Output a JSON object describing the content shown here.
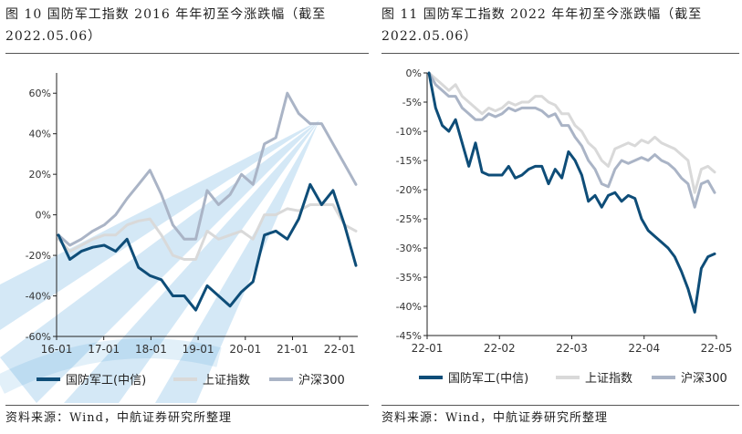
{
  "figures": {
    "left": {
      "caption": "图 10 国防军工指数 2016 年年初至今涨跌幅（截至 2022.05.06）",
      "source": "资料来源：Wind，中航证券研究所整理"
    },
    "right": {
      "caption": "图 11 国防军工指数 2022 年年初至今涨跌幅（截至 2022.05.06）",
      "source": "资料来源：Wind，中航证券研究所整理"
    }
  },
  "colors": {
    "defense": "#0e4d78",
    "sse": "#d9d9d9",
    "csi300": "#aab4c6",
    "watermark": "#3a98d6"
  },
  "chart_data": [
    {
      "type": "line",
      "x_ticks": [
        "16-01",
        "17-01",
        "18-01",
        "19-01",
        "20-01",
        "21-01",
        "22-01"
      ],
      "x": [
        "16-01",
        "16-04",
        "16-07",
        "16-10",
        "17-01",
        "17-04",
        "17-07",
        "17-10",
        "18-01",
        "18-04",
        "18-07",
        "18-10",
        "19-01",
        "19-04",
        "19-07",
        "19-10",
        "20-01",
        "20-04",
        "20-07",
        "20-10",
        "21-01",
        "21-04",
        "21-07",
        "21-10",
        "22-01",
        "22-03",
        "22-05"
      ],
      "ylim": [
        -60,
        70
      ],
      "y_ticks": [
        "60%",
        "40%",
        "20%",
        "0%",
        "-20%",
        "-40%",
        "-60%"
      ],
      "y_tick_values": [
        60,
        40,
        20,
        0,
        -20,
        -40,
        -60
      ],
      "series": [
        {
          "name": "国防军工(中信)",
          "values": [
            -10,
            -22,
            -18,
            -16,
            -15,
            -18,
            -12,
            -26,
            -30,
            -32,
            -40,
            -40,
            -47,
            -35,
            -40,
            -45,
            -38,
            -33,
            -10,
            -8,
            -12,
            -2,
            15,
            5,
            12,
            -5,
            -25
          ]
        },
        {
          "name": "上证指数",
          "values": [
            -12,
            -18,
            -15,
            -12,
            -10,
            -10,
            -5,
            -3,
            -2,
            -10,
            -20,
            -22,
            -22,
            -8,
            -12,
            -10,
            -8,
            -12,
            0,
            0,
            3,
            2,
            5,
            5,
            5,
            -5,
            -8
          ]
        },
        {
          "name": "沪深300",
          "values": [
            -10,
            -15,
            -12,
            -8,
            -5,
            0,
            8,
            15,
            22,
            10,
            -5,
            -12,
            -12,
            12,
            5,
            10,
            20,
            15,
            35,
            38,
            60,
            50,
            45,
            45,
            35,
            25,
            15
          ]
        }
      ],
      "legend": [
        "国防军工(中信)",
        "上证指数",
        "沪深300"
      ]
    },
    {
      "type": "line",
      "x_ticks": [
        "22-01",
        "22-02",
        "22-03",
        "22-04",
        "22-05"
      ],
      "x": [
        0,
        2,
        4,
        6,
        8,
        10,
        12,
        14,
        16,
        18,
        20,
        22,
        24,
        26,
        28,
        30,
        32,
        34,
        36,
        38,
        40,
        42,
        44,
        46,
        48,
        50,
        52,
        54,
        56,
        58,
        60,
        62,
        64,
        66,
        68,
        70,
        72,
        74,
        76,
        78,
        80,
        82,
        84,
        86
      ],
      "ylim": [
        -45,
        0
      ],
      "y_ticks": [
        "0%",
        "-5%",
        "-10%",
        "-15%",
        "-20%",
        "-25%",
        "-30%",
        "-35%",
        "-40%",
        "-45%"
      ],
      "y_tick_values": [
        0,
        -5,
        -10,
        -15,
        -20,
        -25,
        -30,
        -35,
        -40,
        -45
      ],
      "series": [
        {
          "name": "国防军工(中信)",
          "values": [
            0,
            -6,
            -9,
            -10,
            -8,
            -12,
            -16,
            -12,
            -17,
            -17.5,
            -17.5,
            -17.5,
            -16,
            -18,
            -17.5,
            -16.5,
            -16,
            -16,
            -19,
            -16.5,
            -18,
            -13.5,
            -15,
            -17.5,
            -22,
            -21,
            -23,
            -21,
            -20.5,
            -22,
            -21,
            -21.5,
            -25,
            -27,
            -28,
            -29,
            -30,
            -31.5,
            -34,
            -37,
            -41,
            -33.5,
            -31.5,
            -31
          ]
        },
        {
          "name": "上证指数",
          "values": [
            0,
            -1,
            -2,
            -3,
            -2,
            -4,
            -5,
            -6,
            -7,
            -6,
            -6.5,
            -6,
            -5,
            -5.5,
            -5,
            -5,
            -4,
            -4,
            -5,
            -5.5,
            -7,
            -7,
            -9,
            -10,
            -12,
            -13,
            -15,
            -16,
            -13,
            -12.5,
            -12,
            -12.5,
            -11.5,
            -12,
            -11,
            -12,
            -12.5,
            -13,
            -14,
            -15,
            -20.5,
            -16.5,
            -16,
            -17
          ]
        },
        {
          "name": "沪深300",
          "values": [
            0,
            -2,
            -3,
            -4,
            -4,
            -6,
            -7,
            -8,
            -8,
            -7,
            -7.5,
            -7,
            -6,
            -6.5,
            -6,
            -6,
            -6,
            -6.5,
            -7.5,
            -7,
            -9,
            -9,
            -11,
            -12.5,
            -15,
            -16.5,
            -19,
            -19.5,
            -16.5,
            -15,
            -15.5,
            -15,
            -14.5,
            -15,
            -14,
            -15,
            -15.5,
            -16.5,
            -18,
            -19,
            -23,
            -19,
            -18.5,
            -20.5
          ]
        }
      ],
      "legend": [
        "国防军工(中信)",
        "上证指数",
        "沪深300"
      ]
    }
  ]
}
